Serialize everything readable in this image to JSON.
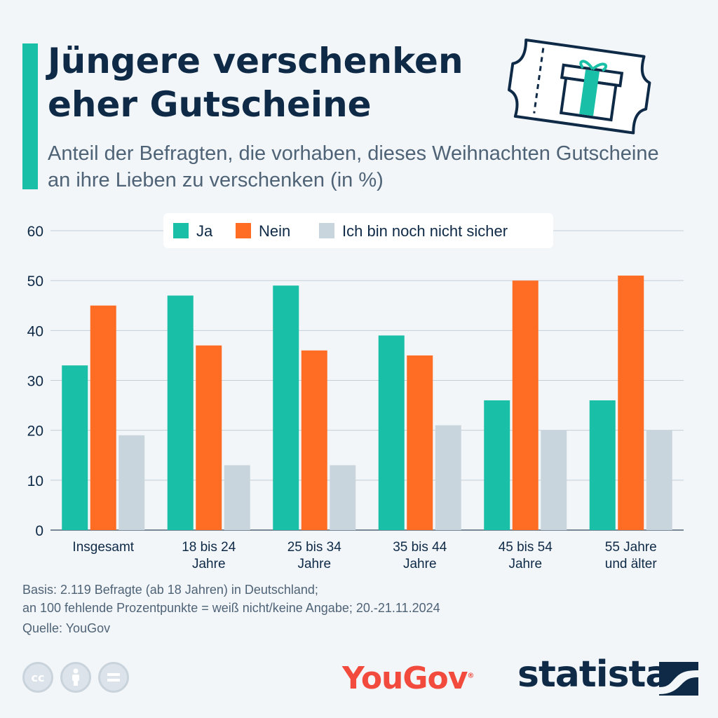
{
  "header": {
    "title": "Jüngere verschenken eher Gutscheine",
    "subtitle": "Anteil der Befragten, die vorhaben, dieses Weihnachten Gutscheine an ihre Lieben zu verschenken (in %)"
  },
  "colors": {
    "accent": "#19bfa6",
    "ja": "#19bfa6",
    "nein": "#ff6d24",
    "unsicher": "#c9d5dd",
    "navy": "#0e2a47"
  },
  "chart_data": {
    "type": "bar",
    "categories": [
      [
        "Insgesamt"
      ],
      [
        "18 bis 24",
        "Jahre"
      ],
      [
        "25 bis 34",
        "Jahre"
      ],
      [
        "35 bis 44",
        "Jahre"
      ],
      [
        "45 bis 54",
        "Jahre"
      ],
      [
        "55 Jahre",
        "und älter"
      ]
    ],
    "series": [
      {
        "name": "Ja",
        "color": "#19bfa6",
        "values": [
          33,
          47,
          49,
          39,
          26,
          26
        ]
      },
      {
        "name": "Nein",
        "color": "#ff6d24",
        "values": [
          45,
          37,
          36,
          35,
          50,
          51
        ]
      },
      {
        "name": "Ich bin noch nicht sicher",
        "color": "#c9d5dd",
        "values": [
          19,
          13,
          13,
          21,
          20,
          20
        ]
      }
    ],
    "ylim": [
      0,
      60
    ],
    "yticks": [
      0,
      10,
      20,
      30,
      40,
      50,
      60
    ],
    "grid": true,
    "legend": "top-center"
  },
  "footer": {
    "note_line1": "Basis: 2.119 Befragte (ab 18 Jahren) in Deutschland;",
    "note_line2": "an 100 fehlende Prozentpunkte = weiß nicht/keine Angabe; 20.-21.11.2024",
    "source": "Quelle: YouGov",
    "cc_icons": [
      "cc-icon",
      "attribution-icon",
      "equals-icon"
    ],
    "cc_text": "cc",
    "yougov_logo": "YouGov",
    "statista_logo": "statista"
  }
}
